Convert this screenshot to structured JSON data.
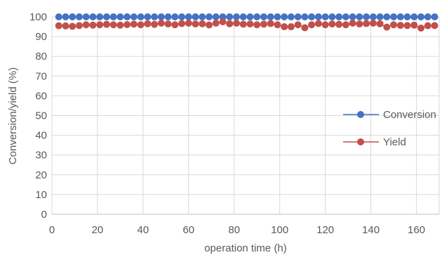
{
  "chart_data": {
    "type": "line",
    "xlabel": "operation time (h)",
    "ylabel": "Conversion/yield (%)",
    "xlim": [
      0,
      170
    ],
    "ylim": [
      0,
      100
    ],
    "xticks": [
      "0",
      "20",
      "40",
      "60",
      "80",
      "100",
      "120",
      "140",
      "160"
    ],
    "yticks": [
      "0",
      "10",
      "20",
      "30",
      "40",
      "50",
      "60",
      "70",
      "80",
      "90",
      "100"
    ],
    "grid": true,
    "legend_position": "right",
    "x": [
      3,
      6,
      9,
      12,
      15,
      18,
      21,
      24,
      27,
      30,
      33,
      36,
      39,
      42,
      45,
      48,
      51,
      54,
      57,
      60,
      63,
      66,
      69,
      72,
      75,
      78,
      81,
      84,
      87,
      90,
      93,
      96,
      99,
      102,
      105,
      108,
      111,
      114,
      117,
      120,
      123,
      126,
      129,
      132,
      135,
      138,
      141,
      144,
      147,
      150,
      153,
      156,
      159,
      162,
      165,
      168
    ],
    "series": [
      {
        "name": "Conversion",
        "color": "#4472C4",
        "values": [
          100,
          100,
          100,
          100,
          100,
          100,
          100,
          100,
          100,
          100,
          100,
          100,
          100,
          100,
          100,
          100,
          100,
          100,
          100,
          100,
          100,
          100,
          100,
          100,
          100,
          100,
          100,
          100,
          100,
          100,
          100,
          100,
          100,
          100,
          100,
          100,
          100,
          100,
          100,
          100,
          100,
          100,
          100,
          100,
          100,
          100,
          100,
          100,
          100,
          100,
          100,
          100,
          100,
          100,
          100,
          100
        ]
      },
      {
        "name": "Yield",
        "color": "#C0504D",
        "values": [
          95.5,
          95.4,
          95.2,
          95.6,
          96.0,
          95.8,
          96.0,
          96.2,
          96.0,
          95.8,
          96.1,
          96.3,
          96.0,
          96.5,
          96.2,
          96.8,
          96.4,
          96.0,
          96.6,
          96.8,
          96.4,
          96.5,
          95.9,
          96.8,
          97.5,
          96.5,
          96.8,
          96.3,
          96.4,
          96.0,
          96.3,
          96.6,
          96.0,
          95.0,
          95.0,
          96.0,
          94.5,
          96.0,
          96.6,
          96.0,
          96.4,
          96.2,
          96.0,
          96.8,
          96.4,
          96.6,
          96.8,
          96.5,
          94.8,
          96.0,
          95.7,
          95.6,
          95.8,
          94.3,
          95.5,
          95.6
        ]
      }
    ]
  }
}
